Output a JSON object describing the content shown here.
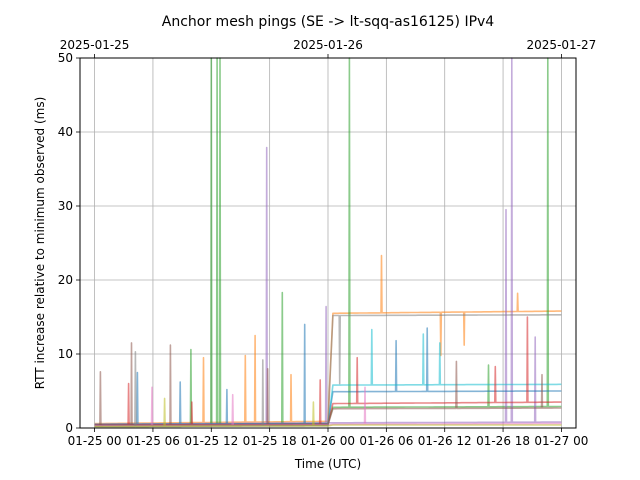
{
  "chart_data": {
    "type": "line",
    "title": "Anchor mesh pings (SE -> lt-sqq-as16125) IPv4",
    "xlabel": "Time (UTC)",
    "ylabel": "RTT increase relative to minimum observed (ms)",
    "ylim": [
      0,
      50
    ],
    "xlim_hours": [
      -1.5,
      49.5
    ],
    "grid": true,
    "x_ticks": [
      {
        "label": "01-25 00",
        "hours": 0
      },
      {
        "label": "01-25 06",
        "hours": 6
      },
      {
        "label": "01-25 12",
        "hours": 12
      },
      {
        "label": "01-25 18",
        "hours": 18
      },
      {
        "label": "01-26 00",
        "hours": 24
      },
      {
        "label": "01-26 06",
        "hours": 30
      },
      {
        "label": "01-26 12",
        "hours": 36
      },
      {
        "label": "01-26 18",
        "hours": 42
      },
      {
        "label": "01-27 00",
        "hours": 48
      }
    ],
    "x_top_ticks": [
      {
        "label": "2025-01-25",
        "hours": 0
      },
      {
        "label": "2025-01-26",
        "hours": 24
      },
      {
        "label": "2025-01-27",
        "hours": 48
      }
    ],
    "y_ticks": [
      0,
      10,
      20,
      30,
      40,
      50
    ],
    "series": [
      {
        "color": "#ff7f0e",
        "x": [
          0,
          24,
          24.5,
          48
        ],
        "values": [
          0.6,
          0.9,
          15.5,
          15.8
        ],
        "spikes": [
          [
            11.2,
            9.5
          ],
          [
            15.5,
            9.8
          ],
          [
            16.5,
            12.5
          ],
          [
            20.2,
            7.2
          ],
          [
            29.5,
            23.3
          ],
          [
            35.6,
            9.8
          ],
          [
            38.0,
            11.2
          ],
          [
            43.5,
            18.2
          ]
        ]
      },
      {
        "color": "#2ca02c",
        "x": [
          0,
          24,
          24.5,
          48
        ],
        "values": [
          0.4,
          0.6,
          2.8,
          2.9
        ],
        "spikes": [
          [
            9.9,
            10.6
          ],
          [
            12.0,
            50
          ],
          [
            12.6,
            50
          ],
          [
            12.9,
            50
          ],
          [
            19.3,
            18.3
          ],
          [
            26.2,
            50
          ],
          [
            40.5,
            8.5
          ],
          [
            46.6,
            50
          ]
        ]
      },
      {
        "color": "#9467bd",
        "x": [
          0,
          24,
          24.5,
          48
        ],
        "values": [
          0.5,
          0.7,
          0.7,
          0.8
        ],
        "spikes": [
          [
            17.7,
            37.9
          ],
          [
            23.8,
            16.4
          ],
          [
            42.3,
            29.5
          ],
          [
            42.9,
            50
          ],
          [
            45.3,
            12.3
          ]
        ]
      },
      {
        "color": "#1f77b4",
        "x": [
          0,
          24,
          24.5,
          48
        ],
        "values": [
          0.5,
          0.6,
          4.9,
          5.0
        ],
        "spikes": [
          [
            4.4,
            7.5
          ],
          [
            8.8,
            6.2
          ],
          [
            13.6,
            5.2
          ],
          [
            21.6,
            14.0
          ],
          [
            31.0,
            11.8
          ],
          [
            34.2,
            13.5
          ]
        ]
      },
      {
        "color": "#17becf",
        "x": [
          0,
          24,
          24.5,
          48
        ],
        "values": [
          0.3,
          0.4,
          5.8,
          5.9
        ],
        "spikes": [
          [
            28.5,
            13.3
          ],
          [
            33.8,
            12.7
          ],
          [
            35.5,
            11.5
          ]
        ]
      },
      {
        "color": "#d62728",
        "x": [
          0,
          24,
          24.5,
          48
        ],
        "values": [
          0.4,
          0.5,
          3.3,
          3.5
        ],
        "spikes": [
          [
            3.5,
            6.0
          ],
          [
            10.0,
            3.5
          ],
          [
            23.2,
            6.5
          ],
          [
            27.0,
            9.5
          ],
          [
            41.2,
            8.3
          ],
          [
            44.5,
            15.0
          ]
        ]
      },
      {
        "color": "#8c564b",
        "x": [
          0,
          24,
          24.5,
          48
        ],
        "values": [
          0.3,
          0.4,
          2.6,
          2.7
        ],
        "spikes": [
          [
            0.6,
            7.6
          ],
          [
            3.8,
            11.5
          ],
          [
            7.8,
            11.2
          ],
          [
            17.8,
            8.0
          ],
          [
            37.2,
            9.0
          ],
          [
            46.0,
            7.2
          ]
        ]
      },
      {
        "color": "#e377c2",
        "x": [
          0,
          24,
          24.5,
          48
        ],
        "values": [
          0.3,
          0.4,
          0.5,
          0.6
        ],
        "spikes": [
          [
            5.9,
            5.5
          ],
          [
            14.2,
            4.5
          ],
          [
            27.8,
            5.5
          ]
        ]
      },
      {
        "color": "#7f7f7f",
        "x": [
          0,
          24,
          24.5,
          48
        ],
        "values": [
          0.2,
          0.3,
          15.2,
          15.3
        ],
        "spikes": [
          [
            4.2,
            10.3
          ],
          [
            17.3,
            9.2
          ],
          [
            25.2,
            6.0
          ]
        ]
      },
      {
        "color": "#bcbd22",
        "x": [
          0,
          24,
          24.5,
          48
        ],
        "values": [
          0.2,
          0.3,
          0.4,
          0.4
        ],
        "spikes": [
          [
            7.2,
            4.0
          ],
          [
            22.5,
            3.5
          ]
        ]
      }
    ]
  }
}
